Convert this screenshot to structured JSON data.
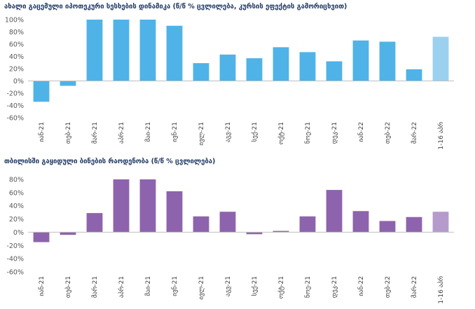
{
  "chart_data": [
    {
      "type": "bar",
      "title": "ახალი გაცემული იპოთეკური სესხების დინამიკა (წ/წ % ცვლილება, კურსის ეფექტის გამორიცხვით)",
      "categories": [
        "იან-21",
        "თებ-21",
        "მარ-21",
        "აპრ-21",
        "მაი-21",
        "ივნ-21",
        "ივლ-21",
        "აგვ-21",
        "სექ-21",
        "ოქტ-21",
        "ნოე-21",
        "დეკ-21",
        "იან-22",
        "თებ-22",
        "მარ-22",
        "1-16 აპრ"
      ],
      "values": [
        -34,
        -8,
        100,
        100,
        100,
        90,
        29,
        43,
        37,
        55,
        47,
        32,
        66,
        64,
        19,
        72
      ],
      "ylim": [
        -60,
        100
      ],
      "yticks": [
        "-60%",
        "-40%",
        "-20%",
        "0%",
        "20%",
        "40%",
        "60%",
        "80%",
        "100%"
      ],
      "color": "#4fb3e8",
      "highlight_color": "#9bd1ef",
      "grid": false
    },
    {
      "type": "bar",
      "title": "თბილისში გაყიდული ბინების რაოდენობა (წ/წ % ცვლილება)",
      "categories": [
        "იან-21",
        "თებ-21",
        "მარ-21",
        "აპრ-21",
        "მაი-21",
        "ივნ-21",
        "ივლ-21",
        "აგვ-21",
        "სექ-21",
        "ოქტ-21",
        "ნოე-21",
        "დეკ-21",
        "იან-22",
        "თებ-22",
        "მარ-22",
        "1-16 აპრ"
      ],
      "values": [
        -15,
        -4,
        29,
        80,
        80,
        62,
        24,
        31,
        -3,
        2,
        24,
        64,
        32,
        17,
        23,
        31
      ],
      "ylim": [
        -60,
        80
      ],
      "yticks": [
        "-60%",
        "-40%",
        "-20%",
        "0%",
        "20%",
        "40%",
        "60%",
        "80%"
      ],
      "color": "#8e63ad",
      "highlight_color": "#b59bcc",
      "grid": false
    }
  ]
}
